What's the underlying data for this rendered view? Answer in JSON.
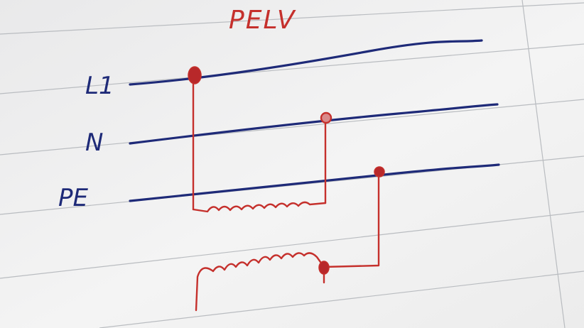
{
  "title": "PELV",
  "conductors": [
    {
      "id": "l1",
      "label": "L1"
    },
    {
      "id": "n",
      "label": "N"
    },
    {
      "id": "pe",
      "label": "PE"
    }
  ],
  "colors": {
    "paper": "#f1f1f1",
    "rule_lines": "#b9bcc0",
    "conductor_ink": "#1e2a78",
    "wiring_ink": "#c5302c"
  }
}
